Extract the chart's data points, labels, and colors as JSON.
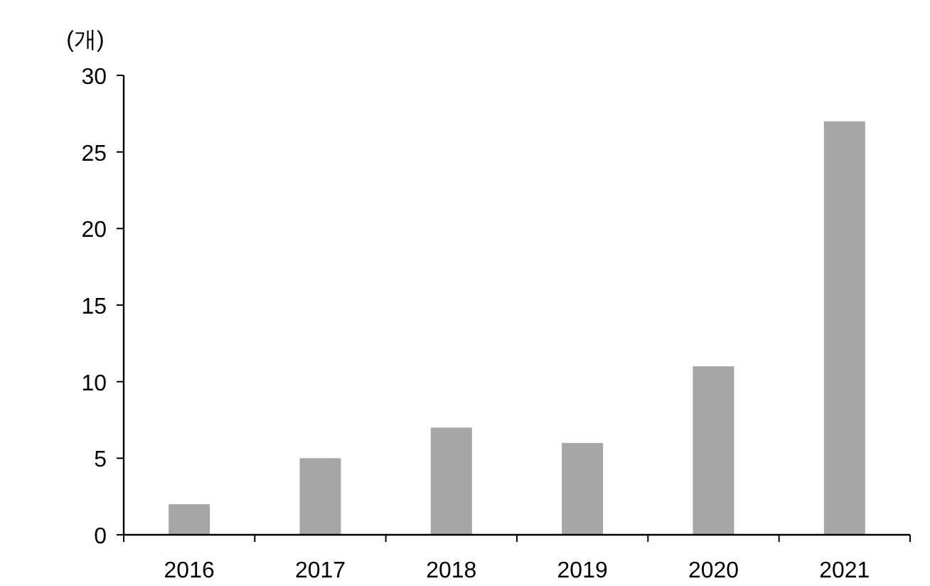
{
  "chart_data": {
    "type": "bar",
    "ylabel": "(개)",
    "categories": [
      "2016",
      "2017",
      "2018",
      "2019",
      "2020",
      "2021"
    ],
    "values": [
      2,
      5,
      7,
      6,
      11,
      27
    ],
    "color": "#a6a6a6",
    "ylim": [
      0,
      30
    ],
    "yticks": [
      0,
      5,
      10,
      15,
      20,
      25,
      30
    ],
    "grid": false
  }
}
